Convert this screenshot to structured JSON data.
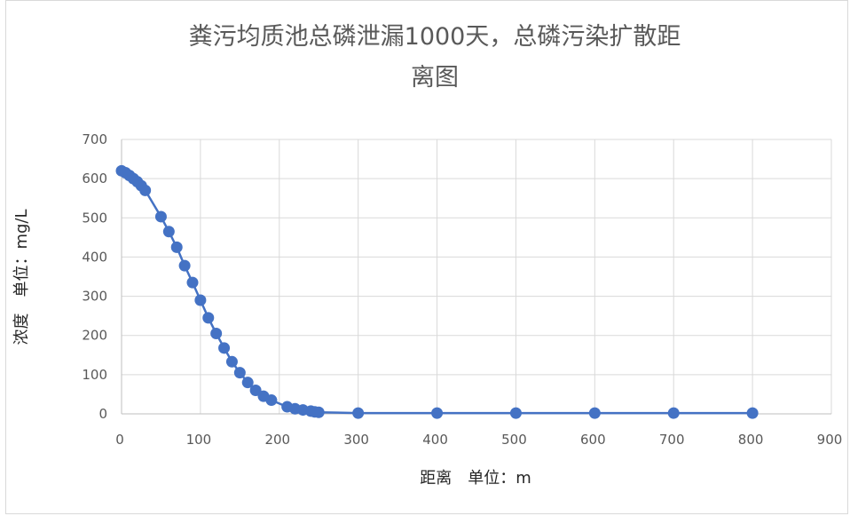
{
  "chart_data": {
    "type": "scatter",
    "title_line1": "粪污均质池总磷泄漏1000天，总磷污染扩散距",
    "title_line2": "离图",
    "xlabel": "距离　单位：m",
    "ylabel": "浓度　单位：mg/L",
    "xlim": [
      0,
      900
    ],
    "ylim": [
      0,
      700
    ],
    "x_ticks": [
      "0",
      "100",
      "200",
      "300",
      "400",
      "500",
      "600",
      "700",
      "800",
      "900"
    ],
    "y_ticks": [
      "0",
      "100",
      "200",
      "300",
      "400",
      "500",
      "600",
      "700"
    ],
    "grid": true,
    "legend": "none",
    "series": [
      {
        "color": "#4472c4",
        "x": [
          0,
          5,
          10,
          15,
          20,
          25,
          30,
          50,
          60,
          70,
          80,
          90,
          100,
          110,
          120,
          130,
          140,
          150,
          160,
          170,
          180,
          190,
          210,
          220,
          230,
          240,
          245,
          250,
          300,
          400,
          500,
          600,
          700,
          800
        ],
        "y": [
          620,
          615,
          608,
          600,
          592,
          582,
          570,
          503,
          465,
          425,
          378,
          335,
          290,
          245,
          205,
          168,
          133,
          105,
          80,
          60,
          45,
          35,
          18,
          13,
          10,
          7,
          5,
          4,
          2,
          2,
          2,
          2,
          2,
          2
        ]
      }
    ]
  }
}
